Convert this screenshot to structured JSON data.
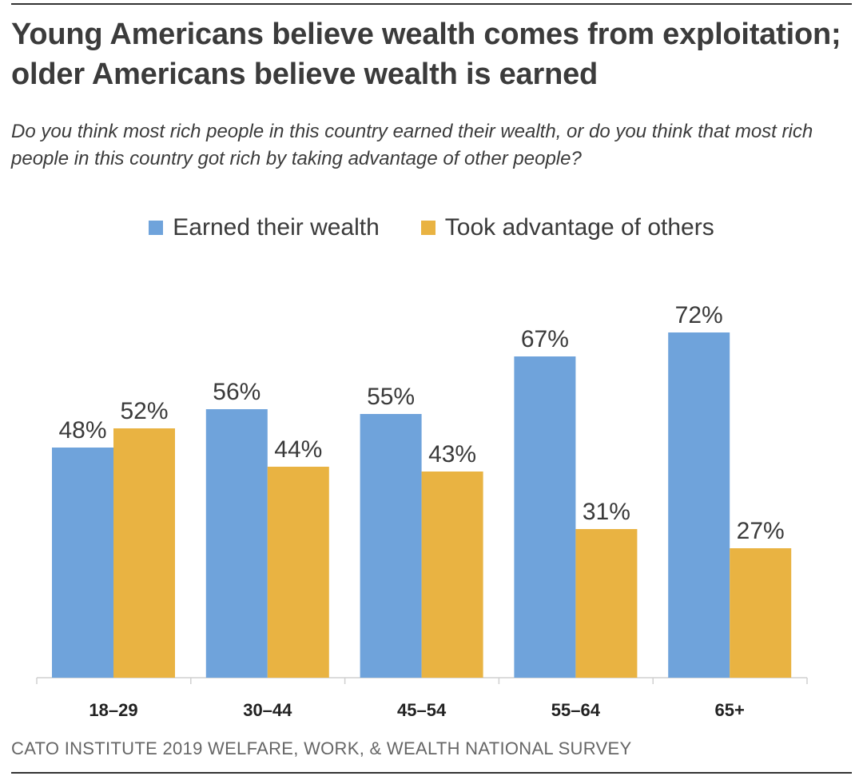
{
  "title": "Young Americans believe wealth comes from exploitation; older Americans believe wealth is earned",
  "subtitle": "Do you think most rich people in this country earned their wealth, or do you think that most rich people in this country got rich by taking advantage of other people?",
  "source": "CATO INSTITUTE 2019 WELFARE, WORK, & WEALTH NATIONAL SURVEY",
  "colors": {
    "earned": "#6fa3db",
    "took": "#e9b342",
    "text": "#3a3a3a"
  },
  "chart_data": {
    "type": "bar",
    "categories": [
      "18–29",
      "30–44",
      "45–54",
      "55–64",
      "65+"
    ],
    "series": [
      {
        "name": "Earned their wealth",
        "values": [
          48,
          56,
          55,
          67,
          72
        ],
        "labels": [
          "48%",
          "56%",
          "55%",
          "67%",
          "72%"
        ]
      },
      {
        "name": "Took advantage of others",
        "values": [
          52,
          44,
          43,
          31,
          27
        ],
        "labels": [
          "52%",
          "44%",
          "43%",
          "31%",
          "27%"
        ]
      }
    ],
    "ylim": [
      0,
      100
    ],
    "grid": false,
    "legend": "top"
  }
}
